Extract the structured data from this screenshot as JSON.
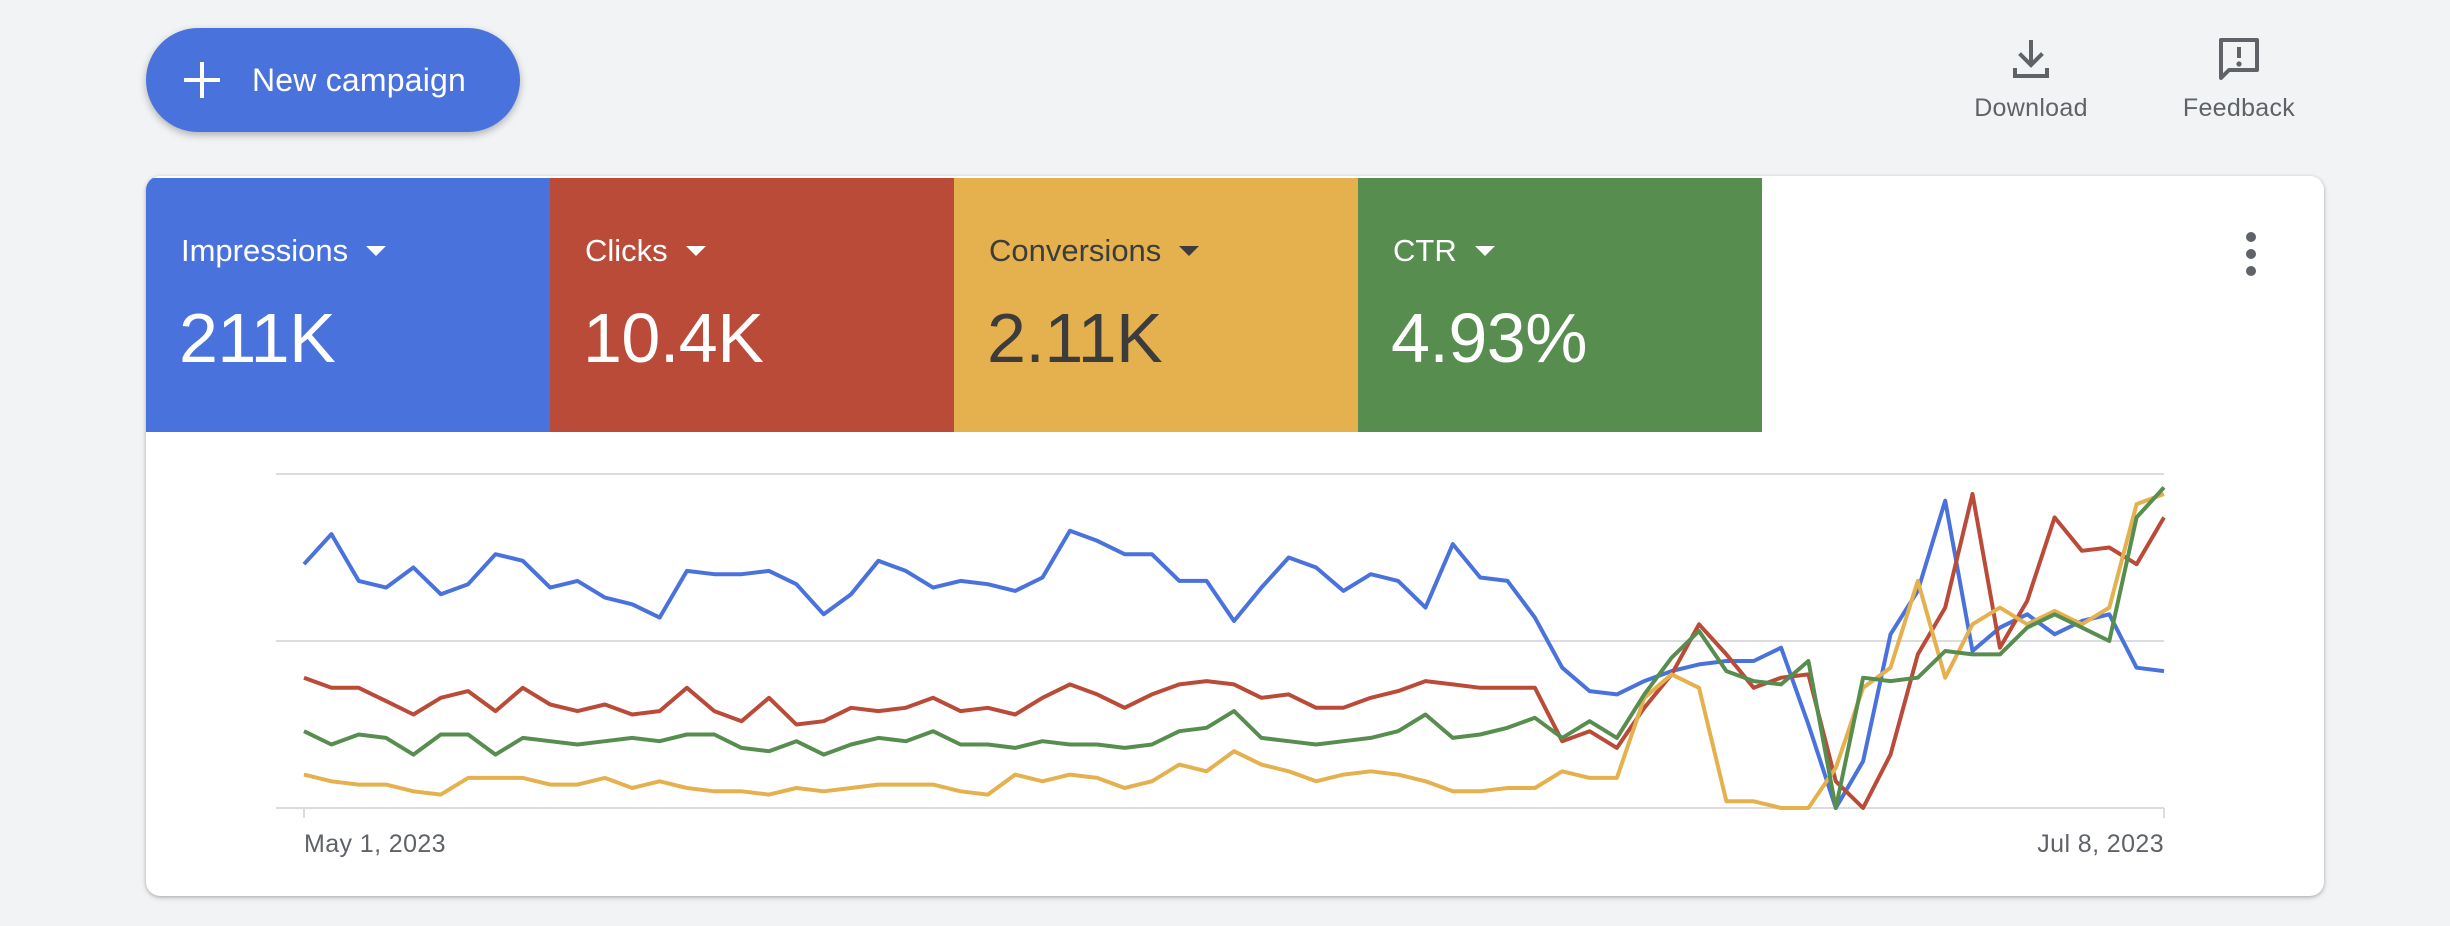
{
  "toolbar": {
    "new_campaign_label": "New campaign",
    "download_label": "Download",
    "feedback_label": "Feedback"
  },
  "metrics": [
    {
      "name": "Impressions",
      "value": "211K",
      "color": "#4a72dd",
      "text_color": "#ffffff"
    },
    {
      "name": "Clicks",
      "value": "10.4K",
      "color": "#ba4b38",
      "text_color": "#ffffff"
    },
    {
      "name": "Conversions",
      "value": "2.11K",
      "color": "#e5b04e",
      "text_color": "#3c3c3c"
    },
    {
      "name": "CTR",
      "value": "4.93%",
      "color": "#578e4f",
      "text_color": "#ffffff"
    }
  ],
  "icons": {
    "new_campaign": "plus-icon",
    "download": "download-icon",
    "feedback": "feedback-icon",
    "menu": "more-vert-icon"
  },
  "chart_data": {
    "type": "line",
    "x_start_label": "May 1, 2023",
    "x_end_label": "Jul 8, 2023",
    "x": [
      "May 1",
      "May 2",
      "May 3",
      "May 4",
      "May 5",
      "May 6",
      "May 7",
      "May 8",
      "May 9",
      "May 10",
      "May 11",
      "May 12",
      "May 13",
      "May 14",
      "May 15",
      "May 16",
      "May 17",
      "May 18",
      "May 19",
      "May 20",
      "May 21",
      "May 22",
      "May 23",
      "May 24",
      "May 25",
      "May 26",
      "May 27",
      "May 28",
      "May 29",
      "May 30",
      "May 31",
      "Jun 1",
      "Jun 2",
      "Jun 3",
      "Jun 4",
      "Jun 5",
      "Jun 6",
      "Jun 7",
      "Jun 8",
      "Jun 9",
      "Jun 10",
      "Jun 11",
      "Jun 12",
      "Jun 13",
      "Jun 14",
      "Jun 15",
      "Jun 16",
      "Jun 17",
      "Jun 18",
      "Jun 19",
      "Jun 20",
      "Jun 21",
      "Jun 22",
      "Jun 23",
      "Jun 24",
      "Jun 25",
      "Jun 26",
      "Jun 27",
      "Jun 28",
      "Jun 29",
      "Jun 30",
      "Jul 1",
      "Jul 2",
      "Jul 3",
      "Jul 4",
      "Jul 5",
      "Jul 6",
      "Jul 7",
      "Jul 8"
    ],
    "ylim": [
      0,
      100
    ],
    "grid": true,
    "normalized": true,
    "series": [
      {
        "name": "Impressions",
        "color": "#4a72dd",
        "values": [
          73,
          82,
          68,
          66,
          72,
          64,
          67,
          76,
          74,
          66,
          68,
          63,
          61,
          57,
          71,
          70,
          70,
          71,
          67,
          58,
          64,
          74,
          71,
          66,
          68,
          67,
          65,
          69,
          83,
          80,
          76,
          76,
          68,
          68,
          56,
          66,
          75,
          72,
          65,
          70,
          68,
          60,
          79,
          69,
          68,
          57,
          42,
          35,
          34,
          38,
          41,
          43,
          44,
          44,
          48,
          25,
          0,
          14,
          52,
          65,
          92,
          47,
          54,
          58,
          52,
          56,
          58,
          42,
          41
        ]
      },
      {
        "name": "Clicks",
        "color": "#ba4b38",
        "values": [
          39,
          36,
          36,
          32,
          28,
          33,
          35,
          29,
          36,
          31,
          29,
          31,
          28,
          29,
          36,
          29,
          26,
          33,
          25,
          26,
          30,
          29,
          30,
          33,
          29,
          30,
          28,
          33,
          37,
          34,
          30,
          34,
          37,
          38,
          37,
          33,
          34,
          30,
          30,
          33,
          35,
          38,
          37,
          36,
          36,
          36,
          20,
          23,
          18,
          30,
          40,
          55,
          46,
          36,
          39,
          40,
          8,
          0,
          16,
          46,
          60,
          94,
          48,
          62,
          87,
          77,
          78,
          73,
          87
        ]
      },
      {
        "name": "Conversions",
        "color": "#e5b04e",
        "values": [
          10,
          8,
          7,
          7,
          5,
          4,
          9,
          9,
          9,
          7,
          7,
          9,
          6,
          8,
          6,
          5,
          5,
          4,
          6,
          5,
          6,
          7,
          7,
          7,
          5,
          4,
          10,
          8,
          10,
          9,
          6,
          8,
          13,
          11,
          17,
          13,
          11,
          8,
          10,
          11,
          10,
          8,
          5,
          5,
          6,
          6,
          11,
          9,
          9,
          33,
          40,
          36,
          2,
          2,
          0,
          0,
          12,
          36,
          42,
          68,
          39,
          55,
          60,
          55,
          59,
          55,
          60,
          91,
          94
        ]
      },
      {
        "name": "CTR",
        "color": "#578e4f",
        "values": [
          23,
          19,
          22,
          21,
          16,
          22,
          22,
          16,
          21,
          20,
          19,
          20,
          21,
          20,
          22,
          22,
          18,
          17,
          20,
          16,
          19,
          21,
          20,
          23,
          19,
          19,
          18,
          20,
          19,
          19,
          18,
          19,
          23,
          24,
          29,
          21,
          20,
          19,
          20,
          21,
          23,
          28,
          21,
          22,
          24,
          27,
          21,
          26,
          21,
          34,
          45,
          53,
          41,
          38,
          37,
          44,
          0,
          39,
          38,
          39,
          47,
          46,
          46,
          54,
          58,
          54,
          50,
          87,
          96
        ]
      }
    ]
  }
}
